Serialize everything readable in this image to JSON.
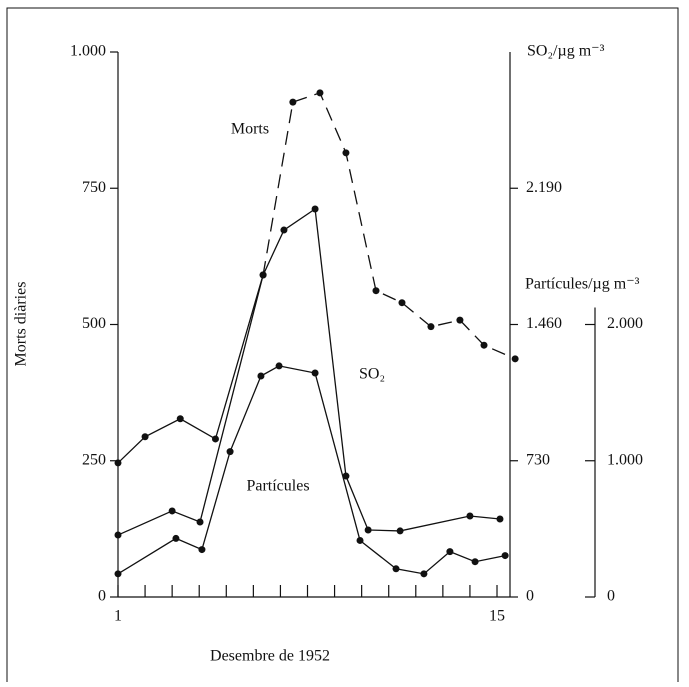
{
  "chart_data": {
    "type": "line",
    "xlabel": "Desembre de 1952",
    "ylabel": "Morts diàries",
    "y2label": "SO₂/µg m⁻³",
    "y3label": "Partícules/µg m⁻³",
    "xlim": [
      1,
      15.48
    ],
    "xticks": [
      1,
      {
        "value": 2,
        "label": null
      },
      {
        "value": 3,
        "label": null
      },
      {
        "value": 4,
        "label": null
      },
      {
        "value": 5,
        "label": null
      },
      {
        "value": 6,
        "label": null
      },
      {
        "value": 7,
        "label": null
      },
      {
        "value": 8,
        "label": null
      },
      {
        "value": 9,
        "label": null
      },
      {
        "value": 10,
        "label": null
      },
      {
        "value": 11,
        "label": null
      },
      {
        "value": 12,
        "label": null
      },
      {
        "value": 13,
        "label": null
      },
      {
        "value": 14,
        "label": null
      },
      15
    ],
    "ylim": [
      0,
      1000
    ],
    "yticks": [
      0,
      250,
      500,
      750,
      {
        "value": 1000,
        "label": "1.000"
      }
    ],
    "y2lim": [
      0,
      2920
    ],
    "y2ticks": [
      0,
      730,
      {
        "value": 1460,
        "label": "1.460"
      },
      {
        "value": 2190,
        "label": "2.190"
      }
    ],
    "y3lim": [
      0,
      4000
    ],
    "y3ticks": [
      0,
      {
        "value": 1000,
        "label": "1.000"
      },
      {
        "value": 2000,
        "label": "2.000"
      }
    ],
    "series": [
      {
        "name": "Morts",
        "color": "#111111",
        "dash_from_index": 4,
        "x": [
          1,
          2,
          3.3,
          4.6,
          6.36,
          7.46,
          8.46,
          9.42,
          10.53,
          11.49,
          12.56,
          13.63,
          14.52,
          15.67
        ],
        "values": [
          246,
          294,
          327,
          290,
          591,
          908,
          925,
          815,
          562,
          540,
          496,
          508,
          462,
          437
        ]
      },
      {
        "name": "SO₂",
        "color": "#111111",
        "axis": "y2",
        "x": [
          1,
          3,
          4.03,
          6.36,
          7.13,
          8.28,
          9.42,
          10.24,
          11.42,
          14.0,
          15.11
        ],
        "values": [
          332,
          461,
          402,
          1725,
          1966,
          2079,
          648,
          359,
          354,
          434,
          418
        ]
      },
      {
        "name": "Partícules",
        "color": "#111111",
        "axis": "y3",
        "x": [
          1,
          3.14,
          4.1,
          5.14,
          6.28,
          6.95,
          8.28,
          9.94,
          11.27,
          12.3,
          13.26,
          14.19,
          15.3
        ],
        "values": [
          170,
          430,
          348,
          1067,
          1622,
          1696,
          1644,
          415,
          207,
          170,
          333,
          259,
          304
        ]
      }
    ]
  }
}
